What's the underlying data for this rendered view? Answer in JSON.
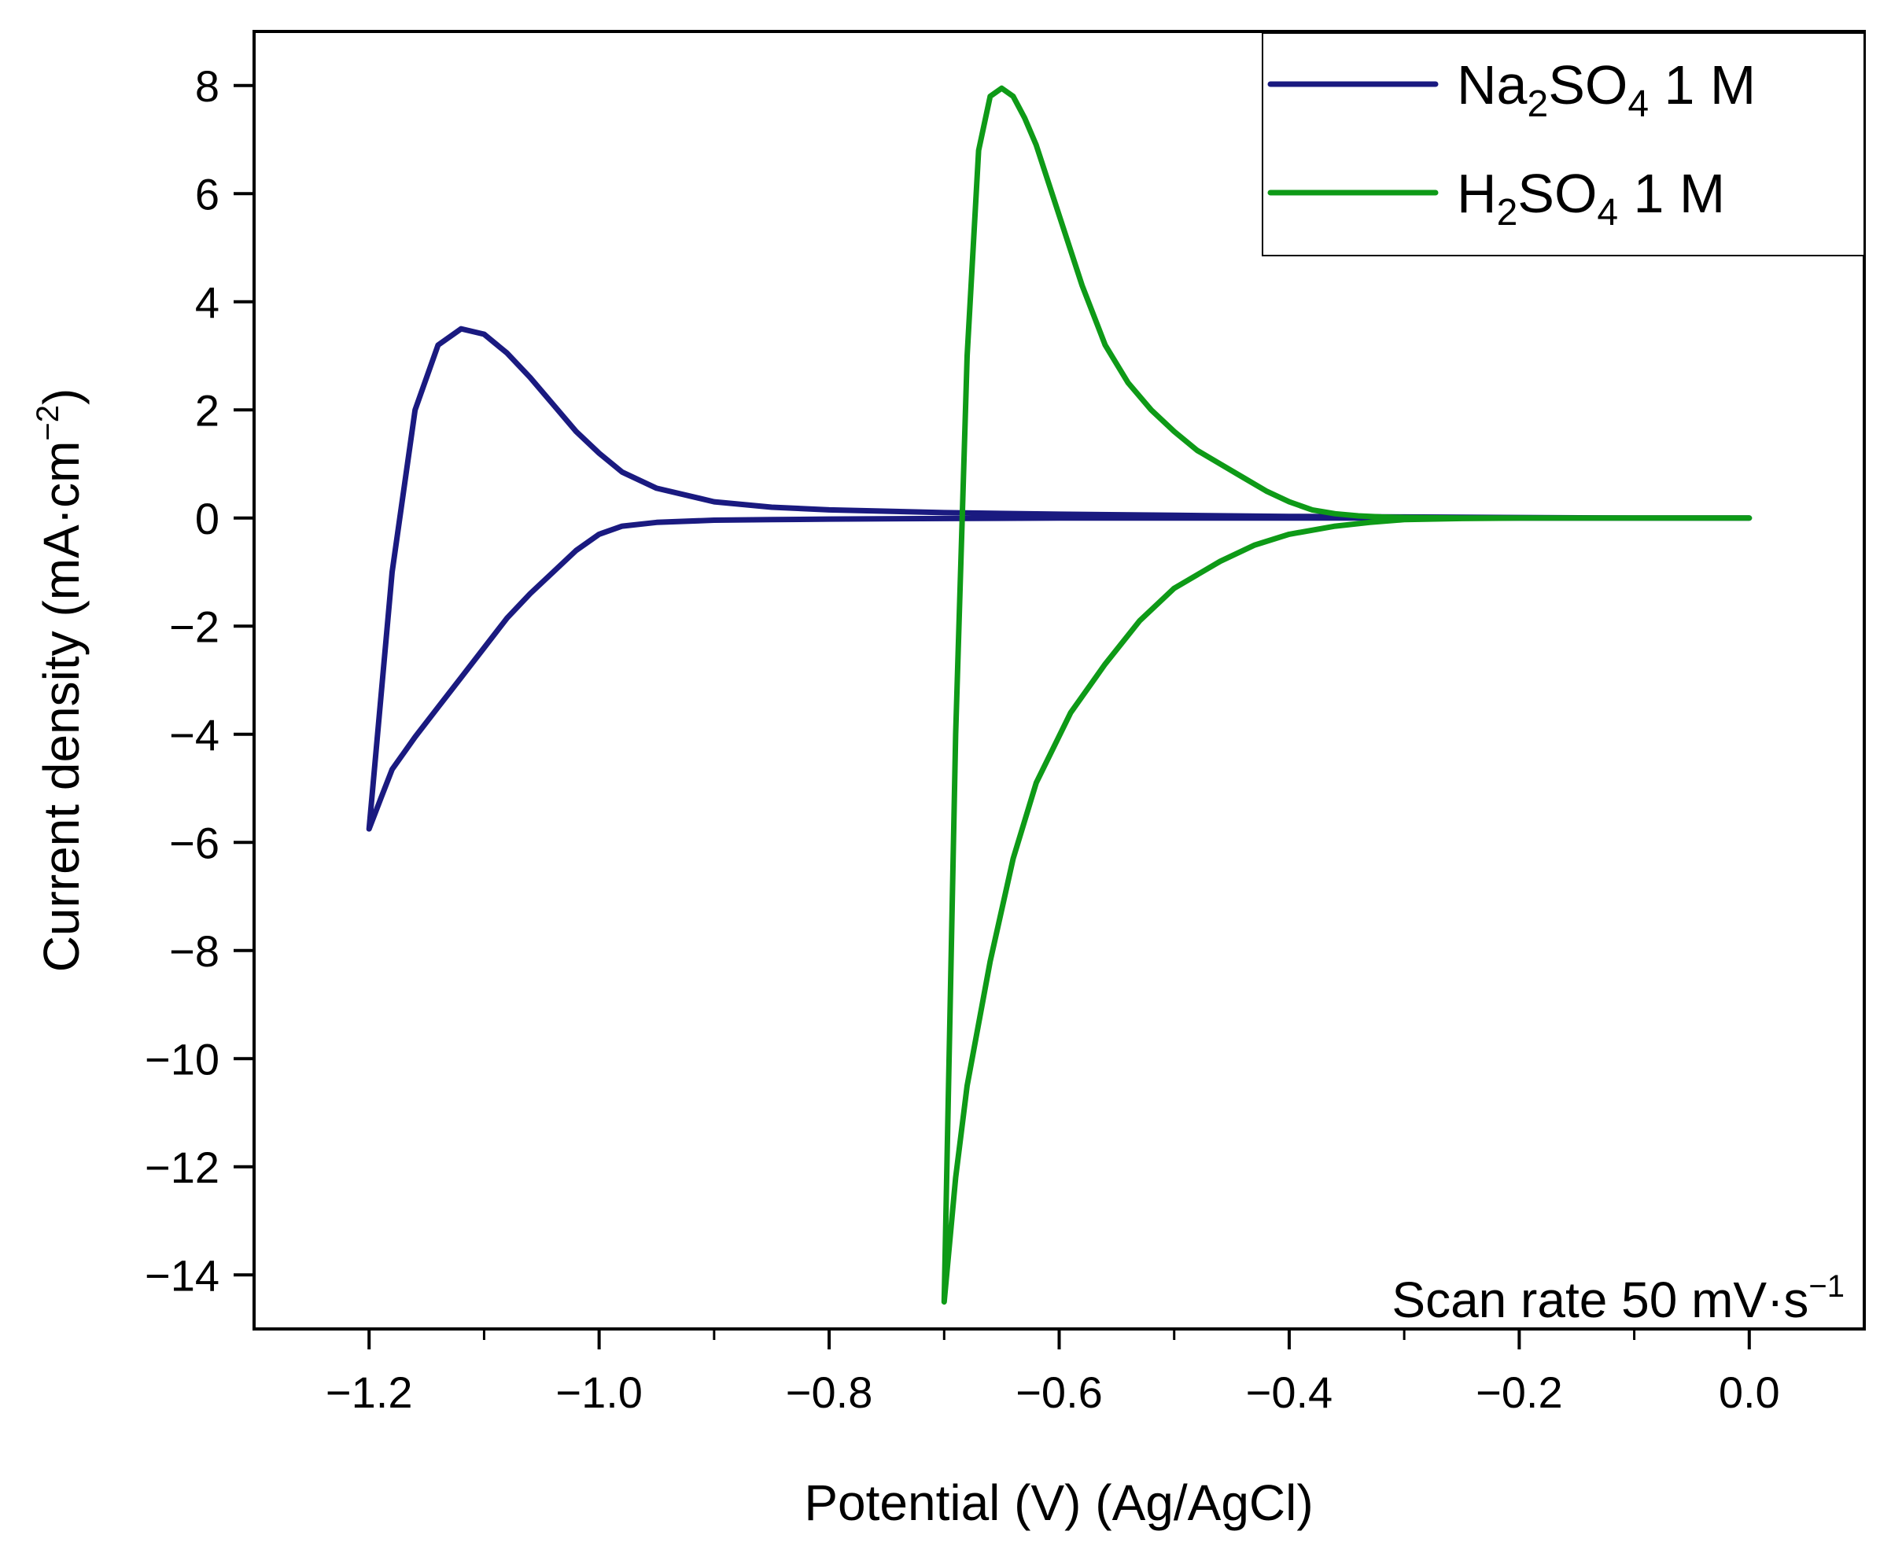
{
  "chart_data": {
    "type": "line",
    "title": "",
    "xlabel": "Potential (V) (Ag/AgCl)",
    "ylabel": "Current density (mA·cm−2)",
    "ylabel_parts": {
      "main": "Current density (mA·cm",
      "exp": "−2",
      "close": ")"
    },
    "xlim": [
      -1.3,
      0.1
    ],
    "ylim": [
      -15,
      9
    ],
    "x_ticks": [
      -1.2,
      -1.0,
      -0.8,
      -0.6,
      -0.4,
      -0.2,
      0.0
    ],
    "x_tick_labels": [
      "−1.2",
      "−1.0",
      "−0.8",
      "−0.6",
      "−0.4",
      "−0.2",
      "0.0"
    ],
    "y_ticks": [
      8,
      6,
      4,
      2,
      0,
      -2,
      -4,
      -6,
      -8,
      -10,
      -12,
      -14
    ],
    "y_tick_labels": [
      "8",
      "6",
      "4",
      "2",
      "0",
      "−2",
      "−4",
      "−6",
      "−8",
      "−10",
      "−12",
      "−14"
    ],
    "grid": false,
    "legend_position": "top-right",
    "annotation": {
      "main": "Scan rate 50 mV·s",
      "exp": "−1"
    },
    "series": [
      {
        "name": "Na2SO4 1 M",
        "legend": {
          "a": "Na",
          "sub1": "2",
          "b": "SO",
          "sub2": "4",
          "c": " 1 M"
        },
        "color": "#1a1a80",
        "x": [
          0.0,
          -0.1,
          -0.2,
          -0.3,
          -0.4,
          -0.5,
          -0.6,
          -0.7,
          -0.8,
          -0.85,
          -0.9,
          -0.95,
          -0.98,
          -1.0,
          -1.02,
          -1.04,
          -1.06,
          -1.08,
          -1.1,
          -1.12,
          -1.14,
          -1.16,
          -1.18,
          -1.19,
          -1.2,
          -1.2,
          -1.18,
          -1.16,
          -1.14,
          -1.12,
          -1.1,
          -1.08,
          -1.06,
          -1.04,
          -1.02,
          -1.0,
          -0.98,
          -0.95,
          -0.9,
          -0.85,
          -0.8,
          -0.7,
          -0.6,
          -0.5,
          -0.4,
          -0.3,
          -0.2,
          -0.1,
          0.0
        ],
        "y": [
          0.0,
          0.0,
          0.0,
          0.0,
          0.0,
          0.0,
          0.0,
          -0.01,
          -0.02,
          -0.03,
          -0.04,
          -0.08,
          -0.15,
          -0.3,
          -0.6,
          -1.0,
          -1.4,
          -1.85,
          -2.4,
          -2.95,
          -3.5,
          -4.05,
          -4.65,
          -5.2,
          -5.75,
          -5.75,
          -1.0,
          2.0,
          3.2,
          3.5,
          3.4,
          3.05,
          2.6,
          2.1,
          1.6,
          1.2,
          0.85,
          0.55,
          0.3,
          0.2,
          0.15,
          0.1,
          0.07,
          0.05,
          0.03,
          0.02,
          0.01,
          0.0,
          0.0
        ]
      },
      {
        "name": "H2SO4 1 M",
        "legend": {
          "a": "H",
          "sub1": "2",
          "b": "SO",
          "sub2": "4",
          "c": " 1 M"
        },
        "color": "#0e9a17",
        "x": [
          0.0,
          -0.1,
          -0.2,
          -0.25,
          -0.3,
          -0.33,
          -0.36,
          -0.4,
          -0.43,
          -0.46,
          -0.5,
          -0.53,
          -0.56,
          -0.59,
          -0.62,
          -0.64,
          -0.66,
          -0.68,
          -0.69,
          -0.7,
          -0.7,
          -0.69,
          -0.68,
          -0.67,
          -0.66,
          -0.65,
          -0.64,
          -0.63,
          -0.62,
          -0.6,
          -0.58,
          -0.56,
          -0.54,
          -0.52,
          -0.5,
          -0.48,
          -0.46,
          -0.44,
          -0.42,
          -0.4,
          -0.38,
          -0.36,
          -0.34,
          -0.32,
          -0.3,
          -0.25,
          -0.2,
          -0.1,
          0.0
        ],
        "y": [
          0.0,
          0.0,
          0.0,
          -0.01,
          -0.03,
          -0.08,
          -0.15,
          -0.3,
          -0.5,
          -0.8,
          -1.3,
          -1.9,
          -2.7,
          -3.6,
          -4.9,
          -6.3,
          -8.2,
          -10.5,
          -12.2,
          -14.5,
          -14.5,
          -4.0,
          3.0,
          6.8,
          7.8,
          7.95,
          7.8,
          7.4,
          6.9,
          5.6,
          4.3,
          3.2,
          2.5,
          2.0,
          1.6,
          1.25,
          1.0,
          0.75,
          0.5,
          0.3,
          0.15,
          0.08,
          0.04,
          0.02,
          0.01,
          0.0,
          0.0,
          0.0,
          0.0
        ]
      }
    ]
  }
}
